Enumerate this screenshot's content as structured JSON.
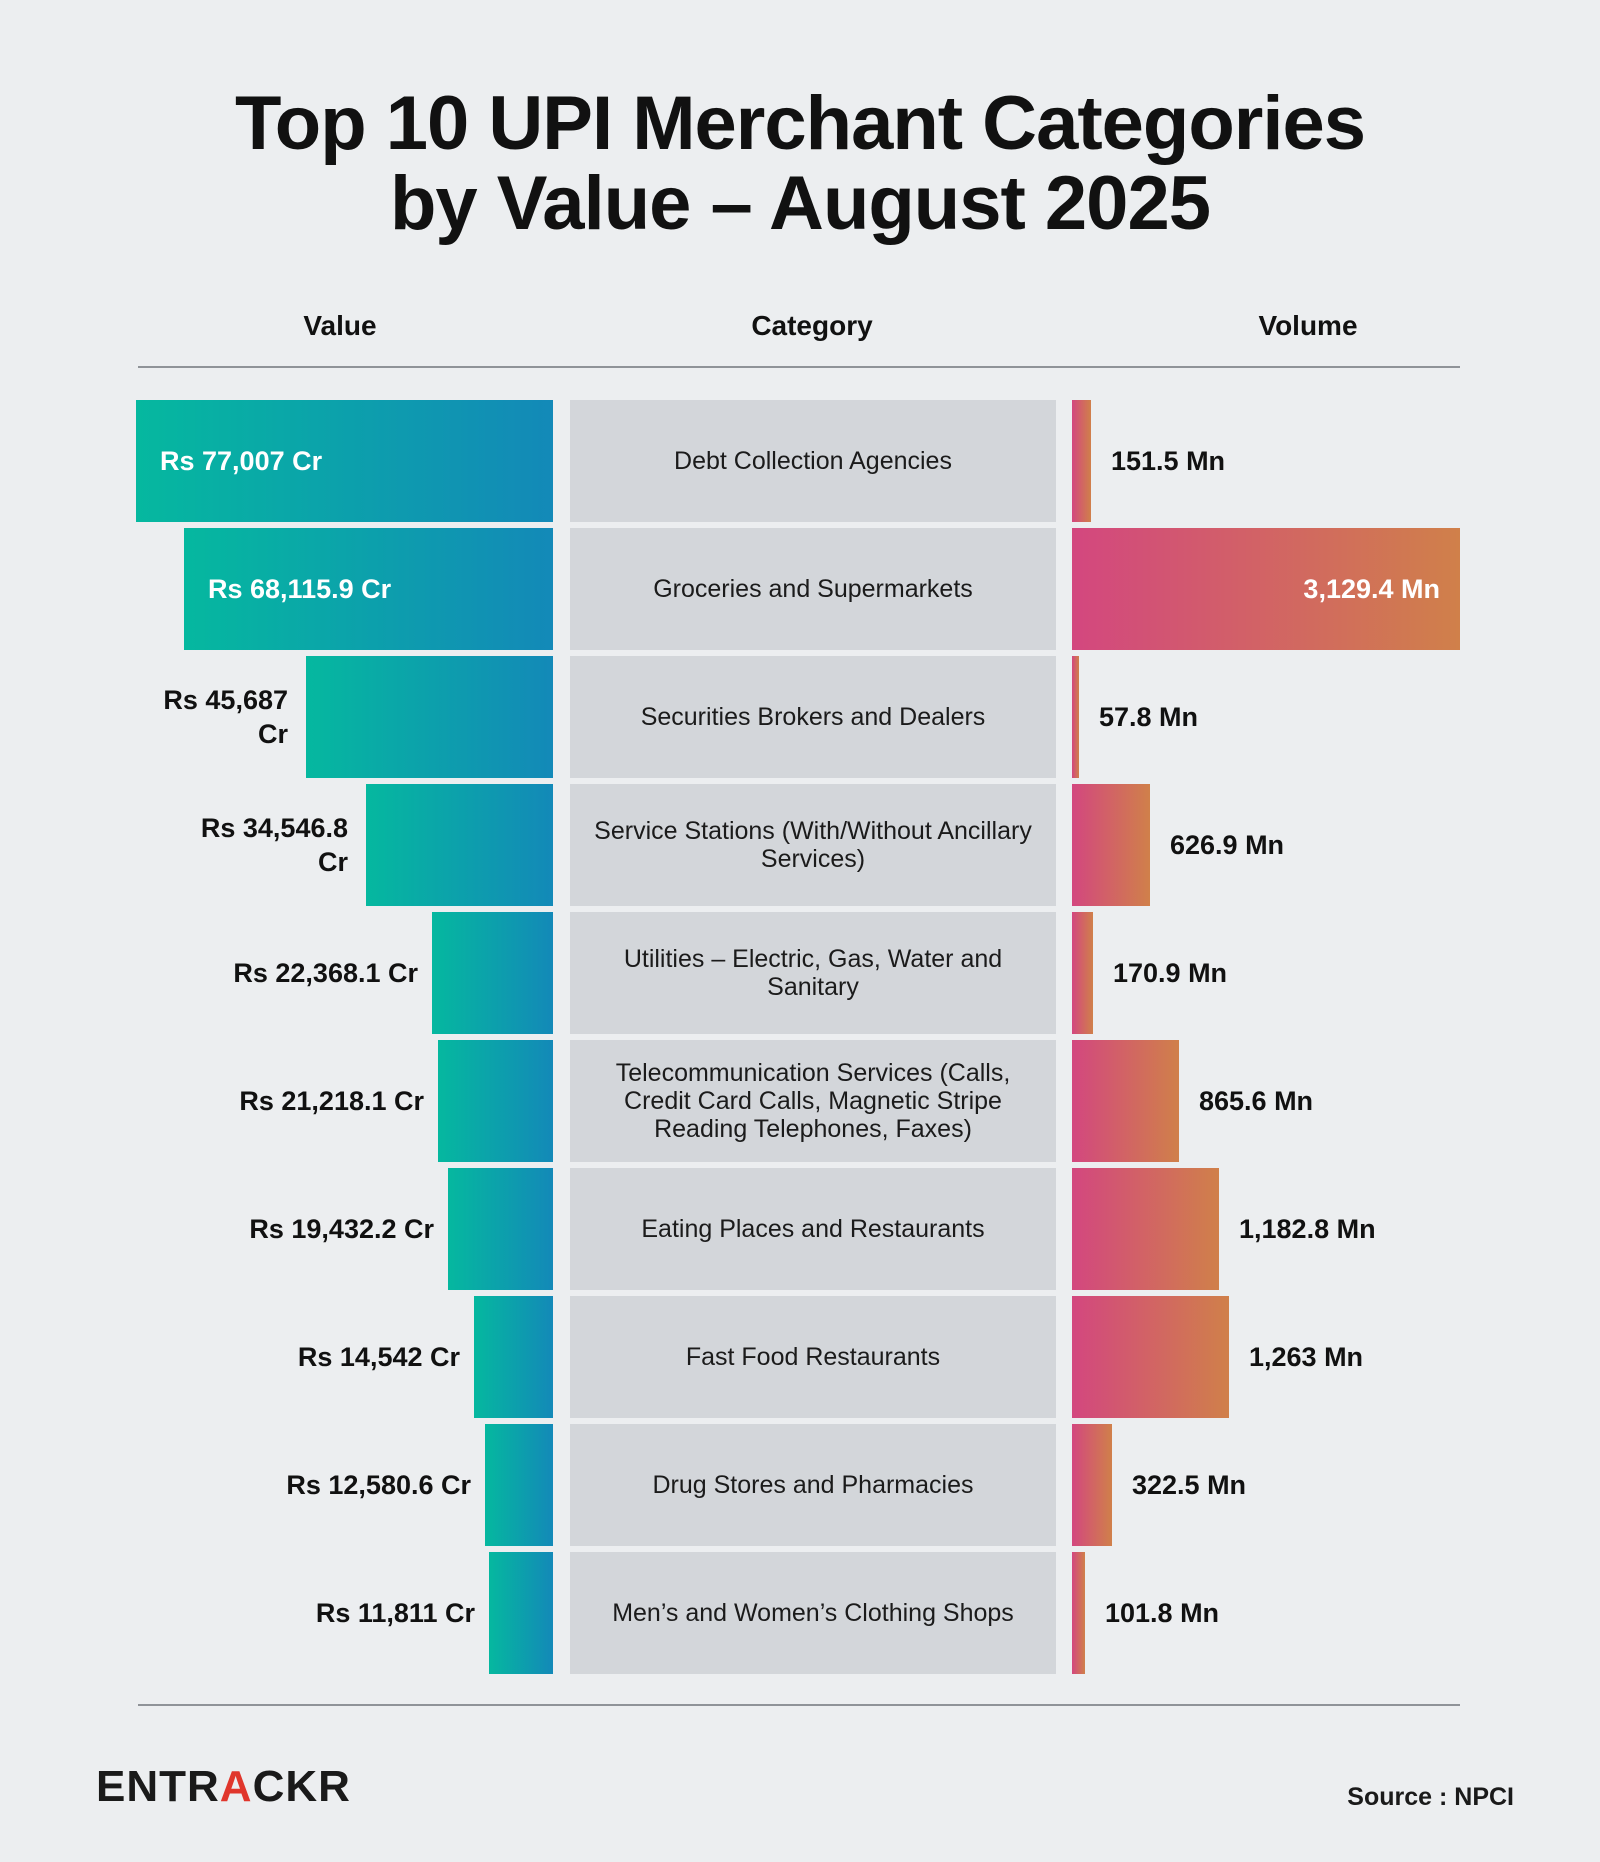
{
  "title": {
    "line1": "Top 10 UPI Merchant Categories",
    "line2": "by Value – August 2025"
  },
  "headers": {
    "value": "Value",
    "category": "Category",
    "volume": "Volume"
  },
  "colors": {
    "value_grad_start": "#05b89f",
    "value_grad_end": "#1389b8",
    "volume_grad_start": "#d3477f",
    "volume_grad_end": "#d0804a",
    "category_bg": "#d3d6da",
    "background": "#eceef0"
  },
  "chart_data": {
    "type": "table",
    "title": "Top 10 UPI Merchant Categories by Value – August 2025",
    "value_unit": "Rs Cr",
    "volume_unit": "Mn",
    "rows": [
      {
        "category": "Debt Collection Agencies",
        "value": 77007,
        "value_label": "Rs 77,007 Cr",
        "volume": 151.5,
        "volume_label": "151.5 Mn"
      },
      {
        "category": "Groceries and Supermarkets",
        "value": 68115.9,
        "value_label": "Rs 68,115.9 Cr",
        "volume": 3129.4,
        "volume_label": "3,129.4 Mn"
      },
      {
        "category": "Securities Brokers and Dealers",
        "value": 45687,
        "value_label": "Rs 45,687 Cr",
        "volume": 57.8,
        "volume_label": "57.8 Mn"
      },
      {
        "category": "Service Stations (With/Without Ancillary Services)",
        "value": 34546.8,
        "value_label": "Rs 34,546.8 Cr",
        "volume": 626.9,
        "volume_label": "626.9 Mn"
      },
      {
        "category": "Utilities – Electric, Gas, Water and Sanitary",
        "value": 22368.1,
        "value_label": "Rs 22,368.1 Cr",
        "volume": 170.9,
        "volume_label": "170.9 Mn"
      },
      {
        "category": "Telecommunication Services (Calls, Credit Card Calls, Magnetic Stripe Reading Telephones, Faxes)",
        "value": 21218.1,
        "value_label": "Rs 21,218.1 Cr",
        "volume": 865.6,
        "volume_label": "865.6 Mn"
      },
      {
        "category": "Eating Places and Restaurants",
        "value": 19432.2,
        "value_label": "Rs 19,432.2 Cr",
        "volume": 1182.8,
        "volume_label": "1,182.8 Mn"
      },
      {
        "category": "Fast Food Restaurants",
        "value": 14542,
        "value_label": "Rs 14,542 Cr",
        "volume": 1263,
        "volume_label": "1,263 Mn"
      },
      {
        "category": "Drug Stores and Pharmacies",
        "value": 12580.6,
        "value_label": "Rs 12,580.6 Cr",
        "volume": 322.5,
        "volume_label": "322.5 Mn"
      },
      {
        "category": "Men’s and Women’s Clothing Shops",
        "value": 11811,
        "value_label": "Rs 11,811 Cr",
        "volume": 101.8,
        "volume_label": "101.8 Mn"
      }
    ]
  },
  "footer": {
    "logo_main": "ENTR",
    "logo_accent": "A",
    "logo_end": "CKR",
    "source": "Source : NPCI"
  }
}
